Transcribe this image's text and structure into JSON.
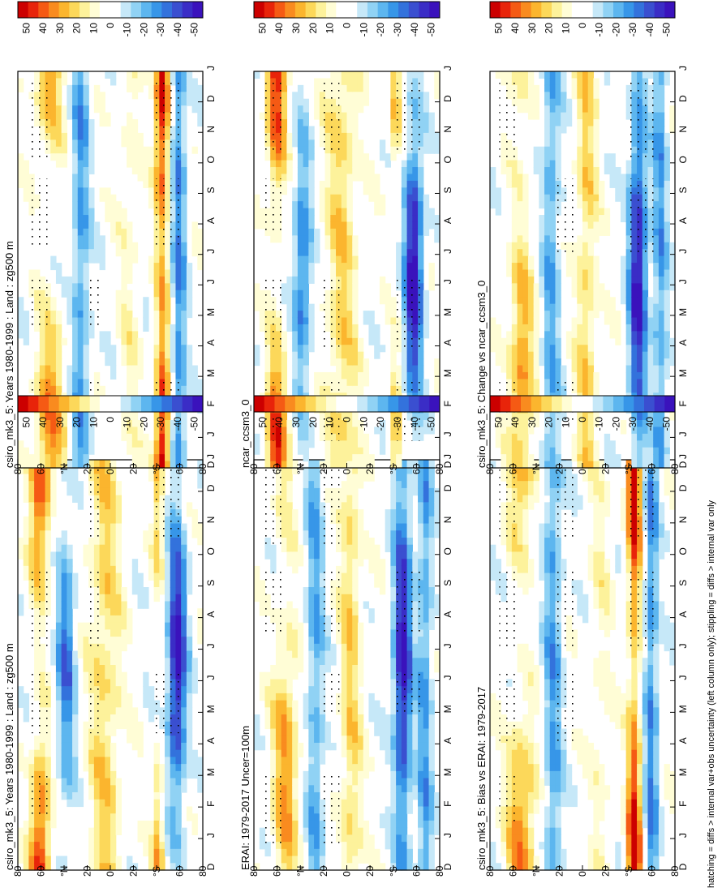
{
  "figure": {
    "footnote": "hatching = diffs > internal var+obs uncertainty (left column only); stippling = diffs > internal var only"
  },
  "colorbar": {
    "labels": [
      "50",
      "40",
      "30",
      "20",
      "10",
      "0",
      "-10",
      "-20",
      "-30",
      "-40",
      "-50"
    ],
    "colors": [
      "#cc0000",
      "#e8240a",
      "#f55a14",
      "#f98b1f",
      "#fbb52e",
      "#fcd85a",
      "#fdf29b",
      "#fffdd6",
      "#ffffff",
      "#ffffff",
      "#c6e8f8",
      "#90d2f4",
      "#5db6ef",
      "#3796e8",
      "#3372dc",
      "#3a4fd0",
      "#3a2dc6",
      "#3a12bc"
    ]
  },
  "axes": {
    "month_labels": [
      "D",
      "J",
      "F",
      "M",
      "A",
      "M",
      "J",
      "J",
      "A",
      "S",
      "O",
      "N",
      "D",
      "J"
    ],
    "lat_labels": [
      "80",
      "60",
      "°N",
      "20",
      "0",
      "20",
      "°S",
      "60",
      "80"
    ]
  },
  "chart_data": [
    {
      "type": "heatmap",
      "title": "csiro_mk3_5: Years 1980-1999 : Land : zg500 m",
      "panel": "top-left",
      "x": [
        "D",
        "J",
        "F",
        "M",
        "A",
        "M",
        "J",
        "J",
        "A",
        "S",
        "O",
        "N",
        "D",
        "J"
      ],
      "y": [
        "80N",
        "60N",
        "40N",
        "20N",
        "0",
        "20S",
        "40S",
        "60S",
        "80S"
      ],
      "zrange": [
        -50,
        50
      ]
    },
    {
      "type": "heatmap",
      "title": "csiro_mk3_5: Years 1980-1999 : Land : zg500 m",
      "panel": "top-right",
      "x": [
        "D",
        "J",
        "F",
        "M",
        "A",
        "M",
        "J",
        "J",
        "A",
        "S",
        "O",
        "N",
        "D",
        "J"
      ],
      "y": [
        "80N",
        "60N",
        "40N",
        "20N",
        "0",
        "20S",
        "40S",
        "60S",
        "80S"
      ],
      "zrange": [
        -50,
        50
      ]
    },
    {
      "type": "heatmap",
      "title": "ERAI: 1979-2017 Uncer=100m",
      "panel": "middle-left",
      "x": [
        "D",
        "J",
        "F",
        "M",
        "A",
        "M",
        "J",
        "J",
        "A",
        "S",
        "O",
        "N",
        "D",
        "J"
      ],
      "y": [
        "80N",
        "60N",
        "40N",
        "20N",
        "0",
        "20S",
        "40S",
        "60S",
        "80S"
      ],
      "zrange": [
        -50,
        50
      ]
    },
    {
      "type": "heatmap",
      "title": "ncar_ccsm3_0",
      "panel": "middle-right",
      "x": [
        "D",
        "J",
        "F",
        "M",
        "A",
        "M",
        "J",
        "J",
        "A",
        "S",
        "O",
        "N",
        "D",
        "J"
      ],
      "y": [
        "80N",
        "60N",
        "40N",
        "20N",
        "0",
        "20S",
        "40S",
        "60S",
        "80S"
      ],
      "zrange": [
        -50,
        50
      ]
    },
    {
      "type": "heatmap",
      "title": "csiro_mk3_5: Bias vs ERAI: 1979-2017",
      "panel": "bottom-left",
      "x": [
        "D",
        "J",
        "F",
        "M",
        "A",
        "M",
        "J",
        "J",
        "A",
        "S",
        "O",
        "N",
        "D",
        "J"
      ],
      "y": [
        "80N",
        "60N",
        "40N",
        "20N",
        "0",
        "20S",
        "40S",
        "60S",
        "80S"
      ],
      "zrange": [
        -50,
        50
      ]
    },
    {
      "type": "heatmap",
      "title": "csiro_mk3_5: Change vs ncar_ccsm3_0",
      "panel": "bottom-right",
      "x": [
        "D",
        "J",
        "F",
        "M",
        "A",
        "M",
        "J",
        "J",
        "A",
        "S",
        "O",
        "N",
        "D",
        "J"
      ],
      "y": [
        "80N",
        "60N",
        "40N",
        "20N",
        "0",
        "20S",
        "40S",
        "60S",
        "80S"
      ],
      "zrange": [
        -50,
        50
      ]
    }
  ]
}
